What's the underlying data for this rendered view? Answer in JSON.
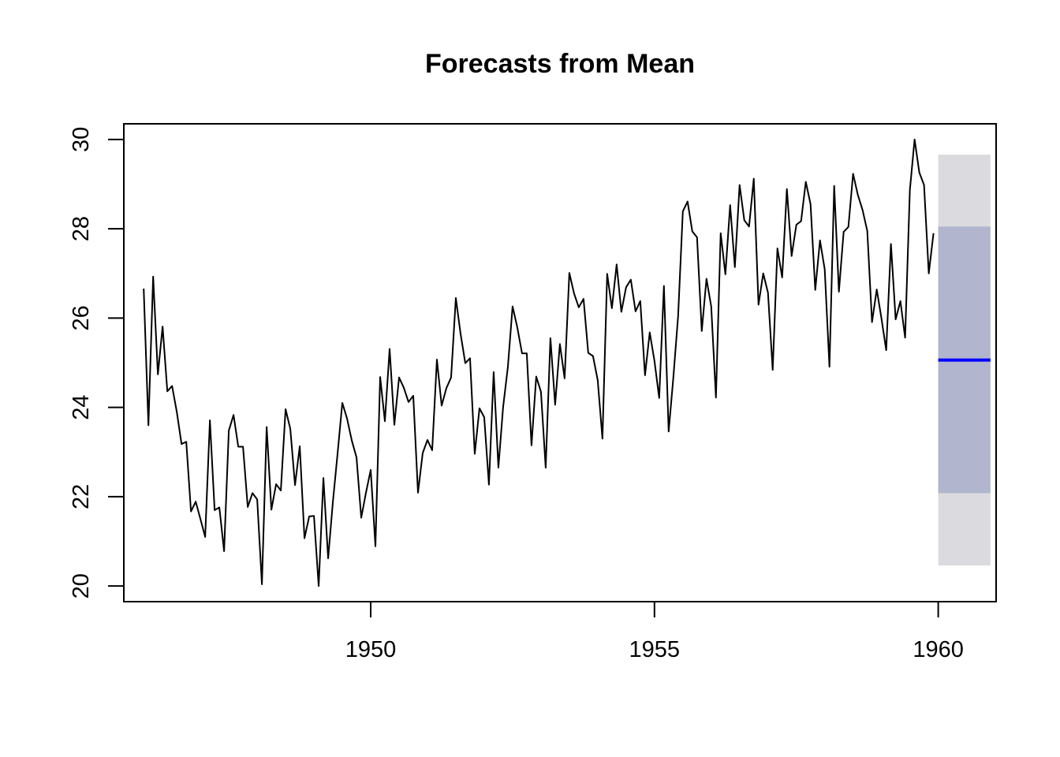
{
  "chart_data": {
    "type": "line",
    "title": "Forecasts from Mean",
    "xlabel": "",
    "ylabel": "",
    "xlim": [
      1945.65,
      1961.02
    ],
    "ylim": [
      19.65,
      30.35
    ],
    "x_ticks": [
      1950,
      1955,
      1960
    ],
    "x_tick_labels": [
      "1950",
      "1955",
      "1960"
    ],
    "y_ticks": [
      20,
      22,
      24,
      26,
      28,
      30
    ],
    "y_tick_labels": [
      "20",
      "22",
      "24",
      "26",
      "28",
      "30"
    ],
    "grid": false,
    "series": [
      {
        "role": "observed",
        "color": "#000000",
        "start": 1946.0,
        "frequency": 12,
        "values": [
          26.66,
          23.6,
          26.93,
          24.74,
          25.81,
          24.36,
          24.48,
          23.9,
          23.18,
          23.23,
          21.67,
          21.89,
          21.5,
          21.1,
          23.71,
          21.7,
          21.76,
          20.78,
          23.48,
          23.83,
          23.12,
          23.12,
          21.77,
          22.08,
          21.94,
          20.04,
          23.56,
          21.71,
          22.28,
          22.14,
          23.96,
          23.52,
          22.26,
          23.13,
          21.07,
          21.56,
          21.57,
          20.0,
          22.42,
          20.62,
          21.88,
          22.97,
          24.1,
          23.75,
          23.26,
          22.88,
          21.53,
          22.09,
          22.6,
          20.89,
          24.68,
          23.69,
          25.31,
          23.61,
          24.67,
          24.44,
          24.12,
          24.26,
          22.09,
          22.98,
          23.27,
          23.04,
          25.07,
          24.04,
          24.43,
          24.67,
          26.45,
          25.65,
          24.99,
          25.1,
          22.96,
          23.98,
          23.78,
          22.27,
          24.79,
          22.65,
          24.01,
          24.9,
          26.26,
          25.79,
          25.21,
          25.21,
          23.15,
          24.69,
          24.35,
          22.65,
          25.55,
          24.06,
          25.42,
          24.65,
          27.01,
          26.55,
          26.24,
          26.43,
          25.22,
          25.15,
          24.61,
          23.3,
          26.99,
          26.22,
          27.2,
          26.14,
          26.69,
          26.86,
          26.15,
          26.38,
          24.72,
          25.68,
          25.04,
          24.21,
          26.72,
          23.46,
          24.68,
          26.04,
          28.39,
          28.61,
          27.94,
          27.81,
          25.71,
          26.88,
          26.26,
          24.22,
          27.9,
          26.98,
          28.53,
          27.14,
          28.98,
          28.19,
          28.05,
          29.12,
          26.3,
          27.0,
          26.57,
          24.84,
          27.56,
          26.91,
          28.89,
          27.39,
          28.09,
          28.17,
          29.05,
          28.55,
          26.63,
          27.74,
          27.09,
          24.91,
          28.96,
          26.59,
          27.93,
          28.04,
          29.23,
          28.76,
          28.42,
          27.95,
          25.91,
          26.64,
          25.99,
          25.28,
          27.66,
          25.97,
          26.38,
          25.56,
          28.86,
          30.0,
          29.26,
          28.98,
          27.0,
          27.9
        ]
      },
      {
        "role": "point-forecast",
        "name": "Mean",
        "color": "#0000FF",
        "x": [
          1960.0,
          1960.92
        ],
        "values": [
          25.06,
          25.06
        ]
      }
    ],
    "intervals": [
      {
        "level": 95,
        "x": [
          1960.0,
          1960.92
        ],
        "lower": 20.46,
        "upper": 29.66,
        "color": "#DBDBDF"
      },
      {
        "level": 80,
        "x": [
          1960.0,
          1960.92
        ],
        "lower": 22.08,
        "upper": 28.05,
        "color": "#B1B5CE"
      }
    ]
  }
}
